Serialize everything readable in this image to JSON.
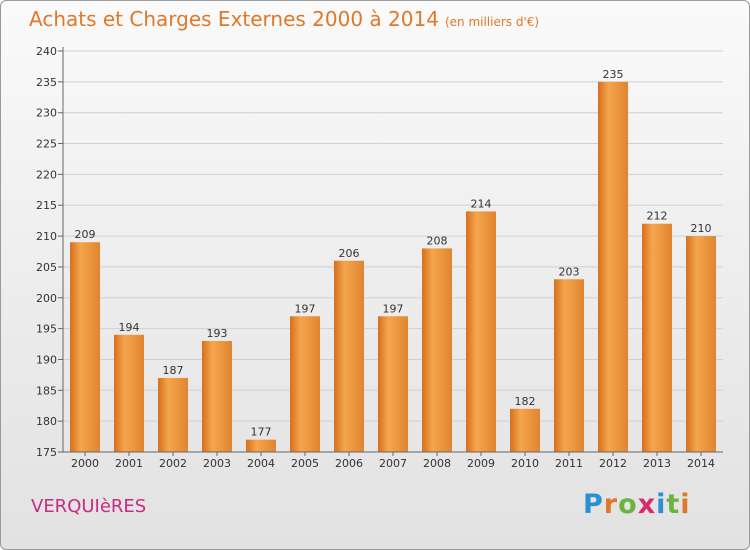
{
  "header": {
    "title": "Achats et Charges Externes 2000 à 2014",
    "subtitle": "(en milliers d'€)"
  },
  "footer": {
    "location": "VERQUIèRES",
    "logo_text": "Proxiti",
    "logo_colors": [
      "#2b8fd6",
      "#e0782a",
      "#6db33f",
      "#d62b6f",
      "#2b8fd6",
      "#6db33f",
      "#e0782a"
    ]
  },
  "colors": {
    "bar_light": "#f5a64c",
    "bar_dark": "#d6701e",
    "grid": "#d0d0d0",
    "title": "#e0782a",
    "location": "#c72b82"
  },
  "chart_data": {
    "type": "bar",
    "categories": [
      "2000",
      "2001",
      "2002",
      "2003",
      "2004",
      "2005",
      "2006",
      "2007",
      "2008",
      "2009",
      "2010",
      "2011",
      "2012",
      "2013",
      "2014"
    ],
    "values": [
      209,
      194,
      187,
      193,
      177,
      197,
      206,
      197,
      208,
      214,
      182,
      203,
      235,
      212,
      210
    ],
    "ylim": [
      175,
      240
    ],
    "yticks": [
      175,
      180,
      185,
      190,
      195,
      200,
      205,
      210,
      215,
      220,
      225,
      230,
      235,
      240
    ],
    "grid": true
  }
}
